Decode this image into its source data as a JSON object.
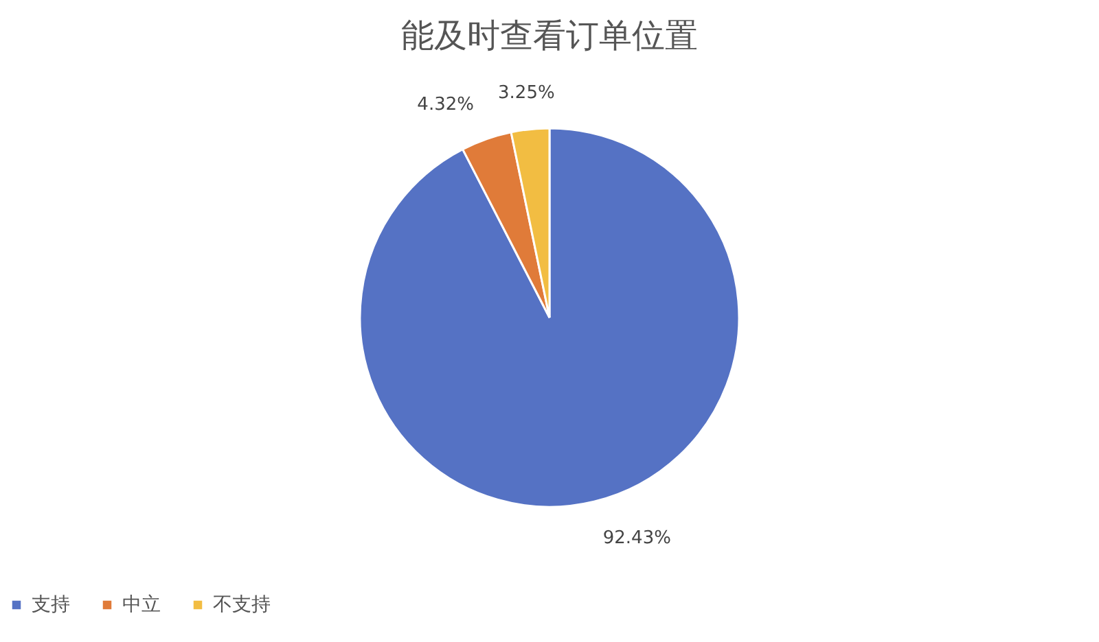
{
  "chart_data": {
    "type": "pie",
    "title": "能及时查看订单位置",
    "categories": [
      "支持",
      "中立",
      "不支持"
    ],
    "values": [
      92.43,
      4.32,
      3.25
    ],
    "colors": [
      "#5572c4",
      "#e07b39",
      "#f2bd42"
    ],
    "value_labels": [
      "92.43%",
      "4.32%",
      "3.25%"
    ],
    "legend": "bottom"
  }
}
